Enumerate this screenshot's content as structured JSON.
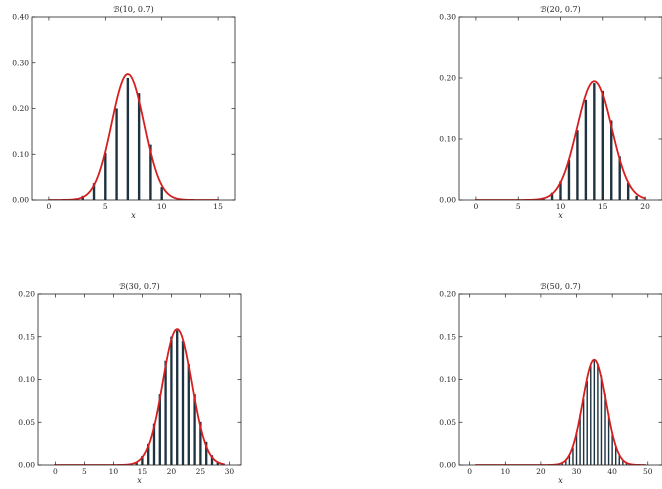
{
  "colors": {
    "bar": "#1e3340",
    "curve": "#d61f1f",
    "frame": "#222222"
  },
  "chart_data": [
    {
      "type": "bar",
      "title": "ℬ(10, 0.7)",
      "xlabel": "x",
      "ylabel": "",
      "xlim": [
        -1.5,
        16.5
      ],
      "ylim": [
        0,
        0.4
      ],
      "xticks": [
        0,
        5,
        10,
        15
      ],
      "yticks": [
        0.0,
        0.1,
        0.2,
        0.3,
        0.4
      ],
      "ytick_labels": [
        "0.00",
        "0.10",
        "0.20",
        "0.30",
        "0.40"
      ],
      "n": 10,
      "p": 0.7,
      "x": [
        0,
        1,
        2,
        3,
        4,
        5,
        6,
        7,
        8,
        9,
        10,
        11,
        12,
        13,
        14,
        15
      ],
      "values": [
        0.0,
        0.0001,
        0.0014,
        0.009,
        0.0368,
        0.1029,
        0.2001,
        0.2668,
        0.2335,
        0.1211,
        0.0282,
        0,
        0,
        0,
        0,
        0
      ],
      "curve": {
        "type": "normal",
        "mean": 7.0,
        "sd": 1.449
      }
    },
    {
      "type": "bar",
      "title": "ℬ(20, 0.7)",
      "xlabel": "x",
      "ylabel": "",
      "xlim": [
        -2,
        22
      ],
      "ylim": [
        0,
        0.3
      ],
      "xticks": [
        0,
        5,
        10,
        15,
        20
      ],
      "yticks": [
        0.0,
        0.1,
        0.2,
        0.3
      ],
      "ytick_labels": [
        "0.00",
        "0.10",
        "0.20",
        "0.30"
      ],
      "n": 20,
      "p": 0.7,
      "x": [
        0,
        1,
        2,
        3,
        4,
        5,
        6,
        7,
        8,
        9,
        10,
        11,
        12,
        13,
        14,
        15,
        16,
        17,
        18,
        19,
        20
      ],
      "values": [
        0,
        0,
        0,
        0,
        0,
        0,
        0.0002,
        0.001,
        0.0039,
        0.012,
        0.0308,
        0.0654,
        0.1144,
        0.1643,
        0.1916,
        0.1789,
        0.1304,
        0.0716,
        0.0278,
        0.0068,
        0.0008
      ],
      "curve": {
        "type": "normal",
        "mean": 14.0,
        "sd": 2.049
      }
    },
    {
      "type": "bar",
      "title": "ℬ(30, 0.7)",
      "xlabel": "x",
      "ylabel": "",
      "xlim": [
        -3,
        32
      ],
      "ylim": [
        0,
        0.2
      ],
      "xticks": [
        0,
        5,
        10,
        15,
        20,
        25,
        30
      ],
      "yticks": [
        0.0,
        0.05,
        0.1,
        0.15,
        0.2
      ],
      "ytick_labels": [
        "0.00",
        "0.05",
        "0.10",
        "0.15",
        "0.20"
      ],
      "n": 30,
      "p": 0.7,
      "x": [
        12,
        13,
        14,
        15,
        16,
        17,
        18,
        19,
        20,
        21,
        22,
        23,
        24,
        25,
        26,
        27,
        28,
        29,
        30
      ],
      "values": [
        0.0003,
        0.0012,
        0.0035,
        0.0106,
        0.0247,
        0.0484,
        0.0829,
        0.1219,
        0.1501,
        0.1575,
        0.145,
        0.1178,
        0.0829,
        0.0505,
        0.0271,
        0.0114,
        0.0038,
        0.0009,
        0.0001
      ],
      "curve": {
        "type": "normal",
        "mean": 21.0,
        "sd": 2.51
      }
    },
    {
      "type": "bar",
      "title": "ℬ(50, 0.7)",
      "xlabel": "x",
      "ylabel": "",
      "xlim": [
        -3,
        54
      ],
      "ylim": [
        0,
        0.2
      ],
      "xticks": [
        0,
        10,
        20,
        30,
        40,
        50
      ],
      "yticks": [
        0.0,
        0.05,
        0.1,
        0.15,
        0.2
      ],
      "ytick_labels": [
        "0.00",
        "0.05",
        "0.10",
        "0.15",
        "0.20"
      ],
      "n": 50,
      "p": 0.7,
      "x": [
        25,
        26,
        27,
        28,
        29,
        30,
        31,
        32,
        33,
        34,
        35,
        36,
        37,
        38,
        39,
        40,
        41,
        42,
        43,
        44,
        45,
        46,
        47
      ],
      "values": [
        0.0014,
        0.0032,
        0.0067,
        0.0123,
        0.0202,
        0.0386,
        0.0598,
        0.0772,
        0.0983,
        0.1159,
        0.1223,
        0.1189,
        0.105,
        0.0839,
        0.0601,
        0.0386,
        0.0219,
        0.011,
        0.0048,
        0.0018,
        0.0006,
        0.0002,
        0.0001
      ],
      "curve": {
        "type": "normal",
        "mean": 35.0,
        "sd": 3.24
      }
    }
  ]
}
